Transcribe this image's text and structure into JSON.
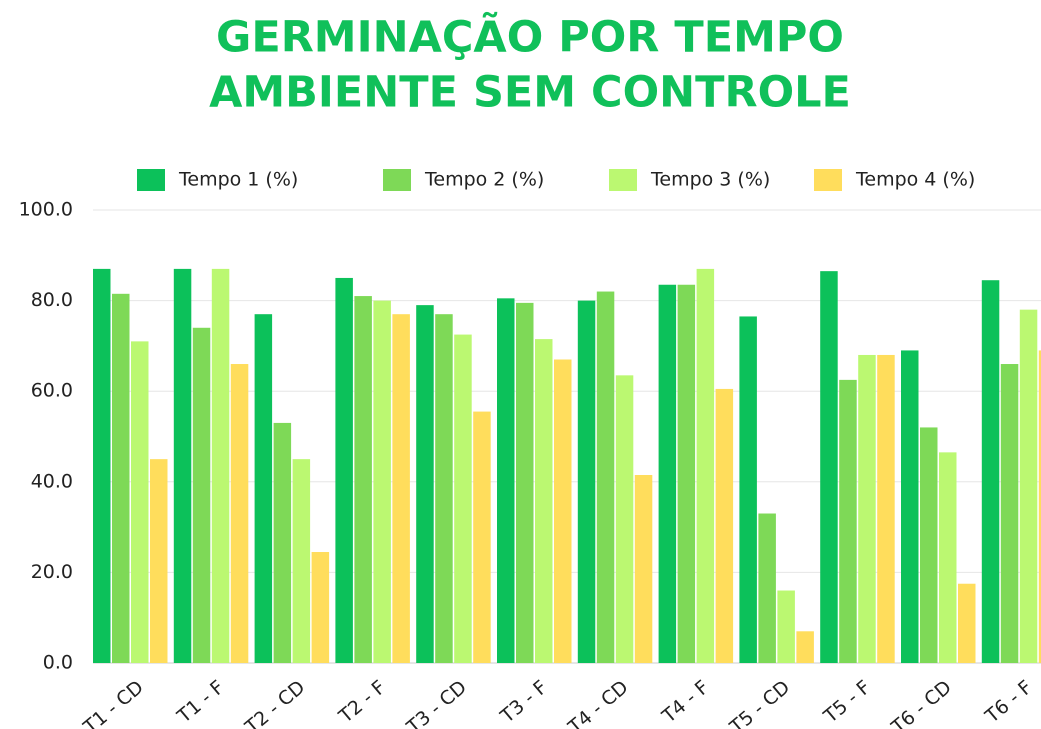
{
  "chart_data": {
    "type": "bar",
    "title": [
      "GERMINAÇÃO POR TEMPO",
      "AMBIENTE SEM CONTROLE"
    ],
    "categories": [
      "T1 - CD",
      "T1 - F",
      "T2 - CD",
      "T2 - F",
      "T3 - CD",
      "T3 - F",
      "T4 - CD",
      "T4 - F",
      "T5 - CD",
      "T5 - F",
      "T6 - CD",
      "T6 - F"
    ],
    "series": [
      {
        "name": "Tempo 1 (%)",
        "color": "#0cc15a",
        "values": [
          87,
          87,
          77,
          85,
          79,
          80.5,
          80,
          83.5,
          76.5,
          86.5,
          69,
          84.5
        ]
      },
      {
        "name": "Tempo 2 (%)",
        "color": "#7ed957",
        "values": [
          81.5,
          74,
          53,
          81,
          77,
          79.5,
          82,
          83.5,
          33,
          62.5,
          52,
          66
        ]
      },
      {
        "name": "Tempo 3 (%)",
        "color": "#bbf871",
        "values": [
          71,
          87,
          45,
          80,
          72.5,
          71.5,
          63.5,
          87,
          16,
          68,
          46.5,
          78
        ]
      },
      {
        "name": "Tempo 4 (%)",
        "color": "#ffdd5c",
        "values": [
          45,
          66,
          24.5,
          77,
          55.5,
          67,
          41.5,
          60.5,
          7,
          68,
          17.5,
          69
        ]
      }
    ],
    "ylim": [
      0,
      100
    ],
    "yticks": [
      {
        "value": 0,
        "label": "0.0"
      },
      {
        "value": 20,
        "label": "20.0"
      },
      {
        "value": 40,
        "label": "40.0"
      },
      {
        "value": 60,
        "label": "60.0"
      },
      {
        "value": 80,
        "label": "80.0"
      },
      {
        "value": 100,
        "label": "100.0"
      }
    ],
    "grid": true,
    "legend": "top"
  }
}
